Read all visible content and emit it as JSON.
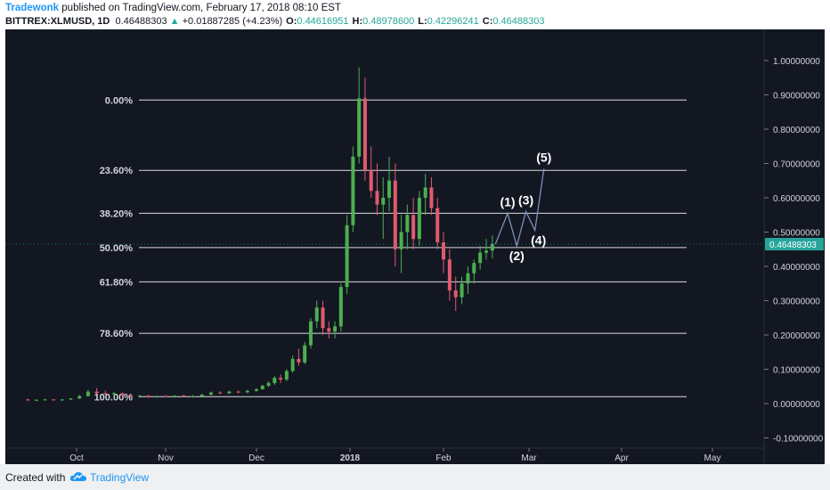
{
  "header": {
    "author": "Tradewonk",
    "published_text": " published on TradingView.com, February 17, 2018 08:10 EST",
    "symbol": "BITTREX:XLMUSD, 1D",
    "last": "0.46488303",
    "change_arrow": "▲",
    "change": "+0.01887285 (+4.23%)",
    "o_label": "O:",
    "o_value": "0.44616951",
    "h_label": "H:",
    "h_value": "0.48978600",
    "l_label": "L:",
    "l_value": "0.42296241",
    "c_label": "C:",
    "c_value": "0.46488303"
  },
  "footer": {
    "created_with": "Created with",
    "brand": "TradingView",
    "logo_icon": "tradingview-cloud-icon"
  },
  "colors": {
    "background": "#131722",
    "up": "#4caf50",
    "down": "#e05a6e",
    "fib_line": "#ffffff",
    "axis_text": "#d1d4dc",
    "price_badge": "#26a69a",
    "wave_line": "#7b8fb8"
  },
  "chart_data": {
    "type": "candlestick",
    "x_labels": [
      "Oct",
      "Nov",
      "Dec",
      "2018",
      "Feb",
      "Mar",
      "Apr",
      "May"
    ],
    "y_ticks": [
      "1.00000000",
      "0.90000000",
      "0.80000000",
      "0.70000000",
      "0.60000000",
      "0.50000000",
      "0.40000000",
      "0.30000000",
      "0.20000000",
      "0.10000000",
      "0.00000000",
      "-0.10000000"
    ],
    "ylim": [
      -0.1,
      1.0
    ],
    "current_price_label": "0.46488303",
    "current_price": 0.46488303,
    "fib_levels": [
      {
        "label": "0.00%",
        "price": 0.885
      },
      {
        "label": "23.60%",
        "price": 0.68
      },
      {
        "label": "38.20%",
        "price": 0.555
      },
      {
        "label": "50.00%",
        "price": 0.455
      },
      {
        "label": "61.80%",
        "price": 0.355
      },
      {
        "label": "78.60%",
        "price": 0.205
      },
      {
        "label": "100.00%",
        "price": 0.02
      }
    ],
    "elliott_wave": {
      "points": [
        {
          "label": "",
          "date": "2018-02-18",
          "price": 0.465
        },
        {
          "label": "(1)",
          "date": "2018-02-22",
          "price": 0.555
        },
        {
          "label": "(2)",
          "date": "2018-02-25",
          "price": 0.46
        },
        {
          "label": "(3)",
          "date": "2018-02-28",
          "price": 0.56
        },
        {
          "label": "(4)",
          "date": "2018-03-03",
          "price": 0.505
        },
        {
          "label": "(5)",
          "date": "2018-03-06",
          "price": 0.685
        }
      ]
    },
    "candles": [
      {
        "date": "2017-09-14",
        "open": 0.012,
        "high": 0.014,
        "low": 0.008,
        "close": 0.01
      },
      {
        "date": "2017-09-17",
        "open": 0.01,
        "high": 0.013,
        "low": 0.008,
        "close": 0.011
      },
      {
        "date": "2017-09-20",
        "open": 0.011,
        "high": 0.014,
        "low": 0.009,
        "close": 0.012
      },
      {
        "date": "2017-09-23",
        "open": 0.012,
        "high": 0.013,
        "low": 0.009,
        "close": 0.01
      },
      {
        "date": "2017-09-26",
        "open": 0.01,
        "high": 0.013,
        "low": 0.008,
        "close": 0.012
      },
      {
        "date": "2017-09-29",
        "open": 0.012,
        "high": 0.016,
        "low": 0.01,
        "close": 0.015
      },
      {
        "date": "2017-10-02",
        "open": 0.015,
        "high": 0.025,
        "low": 0.013,
        "close": 0.022
      },
      {
        "date": "2017-10-05",
        "open": 0.022,
        "high": 0.04,
        "low": 0.02,
        "close": 0.035
      },
      {
        "date": "2017-10-08",
        "open": 0.035,
        "high": 0.045,
        "low": 0.028,
        "close": 0.03
      },
      {
        "date": "2017-10-11",
        "open": 0.03,
        "high": 0.038,
        "low": 0.025,
        "close": 0.027
      },
      {
        "date": "2017-10-14",
        "open": 0.027,
        "high": 0.034,
        "low": 0.022,
        "close": 0.03
      },
      {
        "date": "2017-10-17",
        "open": 0.03,
        "high": 0.032,
        "low": 0.022,
        "close": 0.024
      },
      {
        "date": "2017-10-20",
        "open": 0.024,
        "high": 0.028,
        "low": 0.018,
        "close": 0.021
      },
      {
        "date": "2017-10-23",
        "open": 0.021,
        "high": 0.026,
        "low": 0.017,
        "close": 0.023
      },
      {
        "date": "2017-10-26",
        "open": 0.023,
        "high": 0.025,
        "low": 0.017,
        "close": 0.019
      },
      {
        "date": "2017-10-29",
        "open": 0.019,
        "high": 0.024,
        "low": 0.016,
        "close": 0.021
      },
      {
        "date": "2017-11-01",
        "open": 0.021,
        "high": 0.025,
        "low": 0.018,
        "close": 0.02
      },
      {
        "date": "2017-11-04",
        "open": 0.02,
        "high": 0.025,
        "low": 0.017,
        "close": 0.023
      },
      {
        "date": "2017-11-07",
        "open": 0.023,
        "high": 0.026,
        "low": 0.019,
        "close": 0.021
      },
      {
        "date": "2017-11-10",
        "open": 0.021,
        "high": 0.025,
        "low": 0.017,
        "close": 0.022
      },
      {
        "date": "2017-11-13",
        "open": 0.022,
        "high": 0.028,
        "low": 0.02,
        "close": 0.026
      },
      {
        "date": "2017-11-16",
        "open": 0.026,
        "high": 0.035,
        "low": 0.024,
        "close": 0.032
      },
      {
        "date": "2017-11-19",
        "open": 0.032,
        "high": 0.036,
        "low": 0.028,
        "close": 0.03
      },
      {
        "date": "2017-11-22",
        "open": 0.03,
        "high": 0.038,
        "low": 0.028,
        "close": 0.035
      },
      {
        "date": "2017-11-25",
        "open": 0.035,
        "high": 0.038,
        "low": 0.03,
        "close": 0.033
      },
      {
        "date": "2017-11-28",
        "open": 0.033,
        "high": 0.04,
        "low": 0.03,
        "close": 0.037
      },
      {
        "date": "2017-12-01",
        "open": 0.037,
        "high": 0.045,
        "low": 0.035,
        "close": 0.042
      },
      {
        "date": "2017-12-03",
        "open": 0.042,
        "high": 0.055,
        "low": 0.04,
        "close": 0.052
      },
      {
        "date": "2017-12-05",
        "open": 0.052,
        "high": 0.065,
        "low": 0.048,
        "close": 0.06
      },
      {
        "date": "2017-12-07",
        "open": 0.06,
        "high": 0.08,
        "low": 0.055,
        "close": 0.075
      },
      {
        "date": "2017-12-09",
        "open": 0.075,
        "high": 0.085,
        "low": 0.06,
        "close": 0.07
      },
      {
        "date": "2017-12-11",
        "open": 0.07,
        "high": 0.1,
        "low": 0.065,
        "close": 0.095
      },
      {
        "date": "2017-12-13",
        "open": 0.095,
        "high": 0.14,
        "low": 0.09,
        "close": 0.13
      },
      {
        "date": "2017-12-15",
        "open": 0.13,
        "high": 0.16,
        "low": 0.11,
        "close": 0.12
      },
      {
        "date": "2017-12-17",
        "open": 0.12,
        "high": 0.18,
        "low": 0.115,
        "close": 0.17
      },
      {
        "date": "2017-12-19",
        "open": 0.17,
        "high": 0.25,
        "low": 0.16,
        "close": 0.24
      },
      {
        "date": "2017-12-21",
        "open": 0.24,
        "high": 0.3,
        "low": 0.22,
        "close": 0.28
      },
      {
        "date": "2017-12-23",
        "open": 0.28,
        "high": 0.3,
        "low": 0.2,
        "close": 0.22
      },
      {
        "date": "2017-12-25",
        "open": 0.22,
        "high": 0.24,
        "low": 0.19,
        "close": 0.21
      },
      {
        "date": "2017-12-27",
        "open": 0.21,
        "high": 0.24,
        "low": 0.19,
        "close": 0.225
      },
      {
        "date": "2017-12-29",
        "open": 0.225,
        "high": 0.35,
        "low": 0.21,
        "close": 0.34
      },
      {
        "date": "2017-12-31",
        "open": 0.34,
        "high": 0.55,
        "low": 0.32,
        "close": 0.52
      },
      {
        "date": "2018-01-02",
        "open": 0.52,
        "high": 0.75,
        "low": 0.5,
        "close": 0.72
      },
      {
        "date": "2018-01-04",
        "open": 0.72,
        "high": 0.98,
        "low": 0.7,
        "close": 0.89
      },
      {
        "date": "2018-01-06",
        "open": 0.89,
        "high": 0.95,
        "low": 0.65,
        "close": 0.68
      },
      {
        "date": "2018-01-08",
        "open": 0.68,
        "high": 0.75,
        "low": 0.6,
        "close": 0.62
      },
      {
        "date": "2018-01-10",
        "open": 0.62,
        "high": 0.7,
        "low": 0.55,
        "close": 0.58
      },
      {
        "date": "2018-01-12",
        "open": 0.58,
        "high": 0.66,
        "low": 0.48,
        "close": 0.6
      },
      {
        "date": "2018-01-14",
        "open": 0.6,
        "high": 0.72,
        "low": 0.56,
        "close": 0.65
      },
      {
        "date": "2018-01-16",
        "open": 0.65,
        "high": 0.7,
        "low": 0.4,
        "close": 0.45
      },
      {
        "date": "2018-01-18",
        "open": 0.45,
        "high": 0.55,
        "low": 0.38,
        "close": 0.5
      },
      {
        "date": "2018-01-20",
        "open": 0.5,
        "high": 0.58,
        "low": 0.45,
        "close": 0.55
      },
      {
        "date": "2018-01-22",
        "open": 0.55,
        "high": 0.6,
        "low": 0.45,
        "close": 0.48
      },
      {
        "date": "2018-01-24",
        "open": 0.48,
        "high": 0.62,
        "low": 0.46,
        "close": 0.6
      },
      {
        "date": "2018-01-26",
        "open": 0.6,
        "high": 0.67,
        "low": 0.55,
        "close": 0.63
      },
      {
        "date": "2018-01-28",
        "open": 0.63,
        "high": 0.66,
        "low": 0.55,
        "close": 0.57
      },
      {
        "date": "2018-01-30",
        "open": 0.57,
        "high": 0.6,
        "low": 0.45,
        "close": 0.47
      },
      {
        "date": "2018-02-01",
        "open": 0.47,
        "high": 0.5,
        "low": 0.38,
        "close": 0.42
      },
      {
        "date": "2018-02-03",
        "open": 0.42,
        "high": 0.45,
        "low": 0.3,
        "close": 0.33
      },
      {
        "date": "2018-02-05",
        "open": 0.33,
        "high": 0.37,
        "low": 0.27,
        "close": 0.31
      },
      {
        "date": "2018-02-07",
        "open": 0.31,
        "high": 0.37,
        "low": 0.29,
        "close": 0.35
      },
      {
        "date": "2018-02-09",
        "open": 0.35,
        "high": 0.4,
        "low": 0.32,
        "close": 0.38
      },
      {
        "date": "2018-02-11",
        "open": 0.38,
        "high": 0.42,
        "low": 0.35,
        "close": 0.41
      },
      {
        "date": "2018-02-13",
        "open": 0.41,
        "high": 0.46,
        "low": 0.39,
        "close": 0.44
      },
      {
        "date": "2018-02-15",
        "open": 0.44,
        "high": 0.48,
        "low": 0.42,
        "close": 0.446
      },
      {
        "date": "2018-02-17",
        "open": 0.4462,
        "high": 0.4898,
        "low": 0.423,
        "close": 0.4649
      }
    ]
  }
}
